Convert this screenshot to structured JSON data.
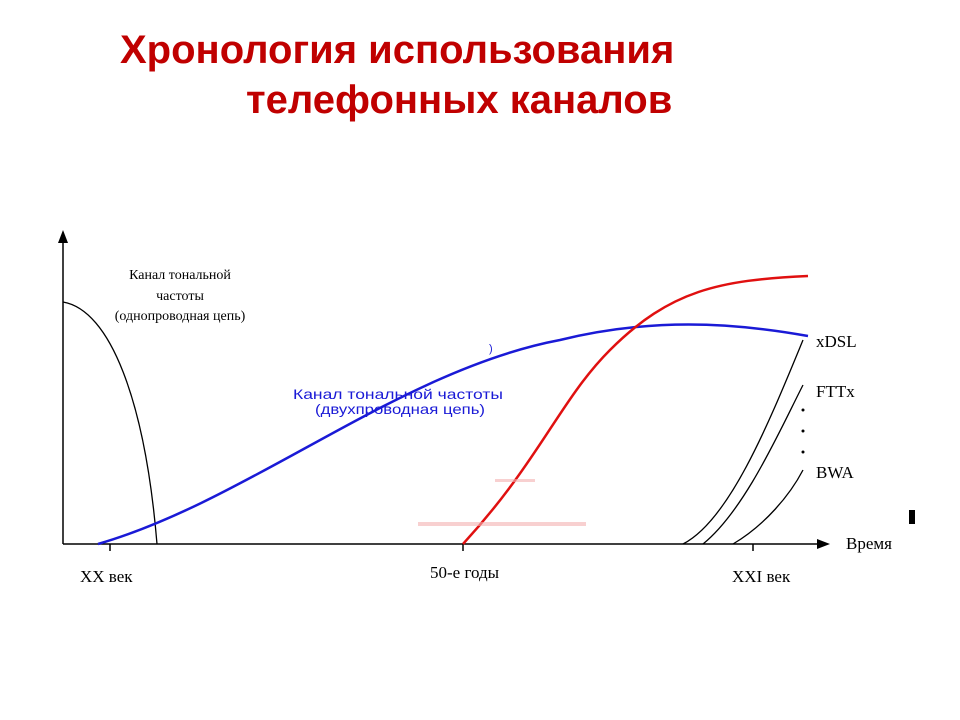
{
  "title": {
    "line1": "Хронология использования",
    "line2": "телефонных каналов"
  },
  "axis": {
    "x_label": "Время",
    "ticks": [
      "XX век",
      "50-е годы",
      "XXI век"
    ]
  },
  "curves": {
    "single_wire": [
      "Канал тональной",
      "частоты",
      "(однопроводная цепь)"
    ],
    "two_wire": [
      "Канал тональной частоты",
      "(двухпроводная цепь)"
    ],
    "xdsl": "xDSL",
    "fttx": "FTTx",
    "bwa": "BWA"
  },
  "colors": {
    "title": "#c00000",
    "two_wire_curve": "#1a1ad6",
    "red_curve": "#e01010",
    "axis": "#000000"
  }
}
